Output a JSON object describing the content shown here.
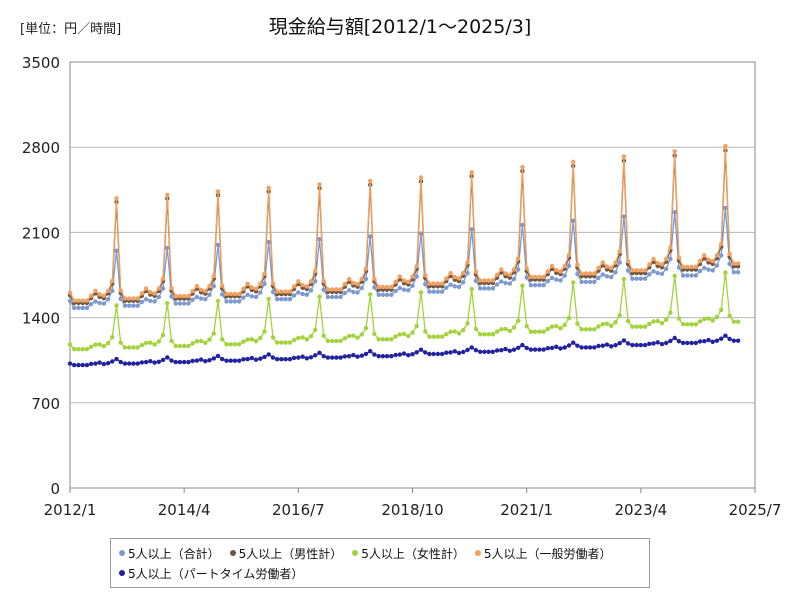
{
  "chart_data": {
    "type": "line",
    "title": "現金給与額[2012/1～2025/3]",
    "unit_label": "[単位：円／時間]",
    "y_ticks": [
      0,
      700,
      1400,
      2100,
      2800,
      3500
    ],
    "ylim": [
      0,
      3500
    ],
    "x_tick_labels": [
      "2012/1",
      "2014/4",
      "2016/7",
      "2018/10",
      "2021/1",
      "2023/4",
      "2025/7"
    ],
    "x_tick_index": [
      0,
      27,
      54,
      81,
      108,
      135,
      162
    ],
    "x_range_index": [
      0,
      162
    ],
    "grid": "horizontal",
    "legend_position": "bottom",
    "series": [
      {
        "name": "5人以上（合計）",
        "color": "#7d9ad0",
        "base": 1480,
        "bonus": 1950,
        "jun": 1510,
        "summer": 1520,
        "late": 1620,
        "bonus_peak_delta": 0
      },
      {
        "name": "5人以上（男性計）",
        "color": "#6e5642",
        "base": 1520,
        "bonus": 2350,
        "jun": 1560,
        "summer": 1570,
        "late": 1680
      },
      {
        "name": "5人以上（女性計）",
        "color": "#a3d33b",
        "base": 1140,
        "bonus": 1500,
        "jun": 1160,
        "summer": 1180,
        "late": 1240
      },
      {
        "name": "5人以上（一般労働者）",
        "color": "#f2a05f",
        "base": 1540,
        "bonus": 2380,
        "jun": 1580,
        "summer": 1590,
        "late": 1700
      },
      {
        "name": "5人以上（パートタイム労働者）",
        "color": "#2222a0",
        "base": 1010,
        "bonus": 1060,
        "jun": 1020,
        "summer": 1030,
        "late": 1040
      }
    ]
  }
}
